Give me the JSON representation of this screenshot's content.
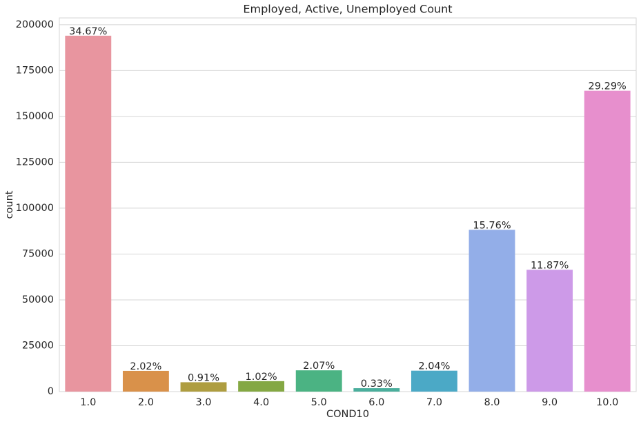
{
  "chart_data": {
    "type": "bar",
    "title": "Employed, Active, Unemployed Count",
    "x_label": "COND10",
    "y_label": "count",
    "categories": [
      "1.0",
      "2.0",
      "3.0",
      "4.0",
      "5.0",
      "6.0",
      "7.0",
      "8.0",
      "9.0",
      "10.0"
    ],
    "values": [
      194000,
      11300,
      5100,
      5700,
      11600,
      1850,
      11400,
      88200,
      66400,
      164000
    ],
    "annotations": [
      "34.67%",
      "2.02%",
      "0.91%",
      "1.02%",
      "2.07%",
      "0.33%",
      "2.04%",
      "15.76%",
      "11.87%",
      "29.29%"
    ],
    "colors": [
      "#e8959f",
      "#d9914a",
      "#ae9d40",
      "#84a843",
      "#4bb383",
      "#4aae9c",
      "#4ba9c6",
      "#93aee8",
      "#cd9ae8",
      "#e78fcd"
    ],
    "ylim": [
      0,
      203700
    ],
    "yticks": [
      0,
      25000,
      50000,
      75000,
      100000,
      125000,
      150000,
      175000,
      200000
    ],
    "grid": true
  }
}
